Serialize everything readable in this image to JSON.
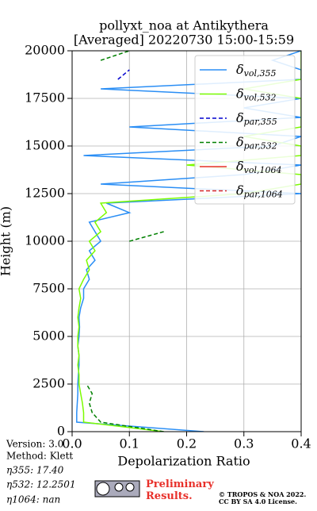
{
  "chart_data": {
    "type": "line",
    "title": [
      "pollyxt_noa at Antikythera",
      "[Averaged] 20220730 15:00-15:59"
    ],
    "x_label": "Depolarization Ratio",
    "y_label": "Height (m)",
    "xlim": [
      0,
      0.4
    ],
    "xticks": [
      {
        "value": 0,
        "label": "0.0"
      },
      0.1,
      0.2,
      0.3,
      0.4
    ],
    "ylim": [
      0,
      20000
    ],
    "yticks": [
      0,
      2500,
      5000,
      7500,
      10000,
      12500,
      15000,
      17500,
      20000
    ],
    "grid": true,
    "legend": "upper right",
    "y": [
      0,
      500,
      1000,
      1500,
      2000,
      2500,
      3000,
      3500,
      4000,
      4500,
      5000,
      5500,
      6000,
      6500,
      7000,
      7500,
      8000,
      8500,
      9000,
      9500,
      10000,
      10500,
      11000,
      11500,
      12000,
      12500,
      13000,
      13500,
      14000,
      14500,
      15000,
      15500,
      16000,
      16500,
      17000,
      17500,
      18000,
      18500,
      19000,
      19500,
      20000
    ],
    "series": [
      {
        "name": "δvol,355",
        "color": "#2a8ef5",
        "dash": false,
        "values": [
          0.23,
          0.008,
          0.008,
          0.009,
          0.01,
          0.01,
          0.011,
          0.012,
          0.012,
          0.01,
          0.012,
          0.013,
          0.012,
          0.015,
          0.02,
          0.02,
          0.03,
          0.025,
          0.04,
          0.03,
          0.05,
          0.04,
          0.03,
          0.1,
          0.06,
          0.4,
          0.05,
          0.3,
          0.4,
          0.02,
          0.35,
          0.4,
          0.1,
          0.4,
          0.3,
          0.4,
          0.05,
          0.4,
          0.4,
          0.35,
          0.4
        ]
      },
      {
        "name": "δvol,532",
        "color": "#7cfc00",
        "dash": false,
        "values": [
          0.16,
          0.02,
          0.02,
          0.018,
          0.015,
          0.012,
          0.012,
          0.01,
          0.012,
          0.01,
          0.01,
          0.012,
          0.01,
          0.012,
          0.015,
          0.012,
          0.02,
          0.03,
          0.025,
          0.04,
          0.03,
          0.05,
          0.04,
          0.06,
          0.05,
          0.3,
          0.4,
          0.4,
          0.2,
          0.4,
          0.4,
          0.3,
          0.4,
          0.4,
          0.4,
          0.4,
          0.3,
          0.4,
          0.4,
          0.4,
          0.4
        ]
      },
      {
        "name": "δpar,355",
        "color": "#0000cd",
        "dash": true,
        "values": [
          null,
          null,
          null,
          null,
          null,
          null,
          null,
          null,
          null,
          null,
          null,
          null,
          null,
          null,
          null,
          null,
          null,
          null,
          null,
          null,
          null,
          null,
          null,
          null,
          null,
          null,
          null,
          null,
          null,
          null,
          null,
          null,
          null,
          null,
          null,
          null,
          null,
          0.08,
          0.1,
          null,
          null
        ]
      },
      {
        "name": "δpar,532",
        "color": "#008000",
        "dash": true,
        "values": [
          0.16,
          0.05,
          0.035,
          0.03,
          0.035,
          0.025,
          null,
          null,
          null,
          null,
          null,
          null,
          null,
          null,
          null,
          null,
          null,
          null,
          null,
          null,
          0.1,
          0.16,
          null,
          null,
          null,
          null,
          null,
          null,
          null,
          null,
          null,
          null,
          null,
          null,
          null,
          null,
          null,
          null,
          null,
          0.05,
          0.1
        ]
      },
      {
        "name": "δvol,1064",
        "color": "#e8302a",
        "dash": false,
        "values": [
          null,
          null,
          null,
          null,
          null,
          null,
          null,
          null,
          null,
          null,
          null,
          null,
          null,
          null,
          null,
          null,
          null,
          null,
          null,
          null,
          null,
          null,
          null,
          null,
          null,
          null,
          null,
          null,
          null,
          null,
          null,
          null,
          null,
          null,
          null,
          null,
          null,
          null,
          null,
          null,
          null
        ]
      },
      {
        "name": "δpar,1064",
        "color": "#d62728",
        "dash": true,
        "values": [
          null,
          null,
          null,
          null,
          null,
          null,
          null,
          null,
          null,
          null,
          null,
          null,
          null,
          null,
          null,
          null,
          null,
          null,
          null,
          null,
          null,
          null,
          null,
          null,
          null,
          null,
          null,
          null,
          null,
          null,
          null,
          null,
          null,
          null,
          null,
          null,
          null,
          null,
          null,
          null,
          null
        ]
      }
    ],
    "annotations": [
      "Version: 3.0",
      "Method: Klett",
      "η355:  17.40",
      "η532: 12.2501",
      "η1064:    nan"
    ],
    "logo_text": "Preliminary Results.",
    "copyright": [
      "© TROPOS & NOA 2022.",
      "CC BY SA 4.0 License."
    ]
  }
}
